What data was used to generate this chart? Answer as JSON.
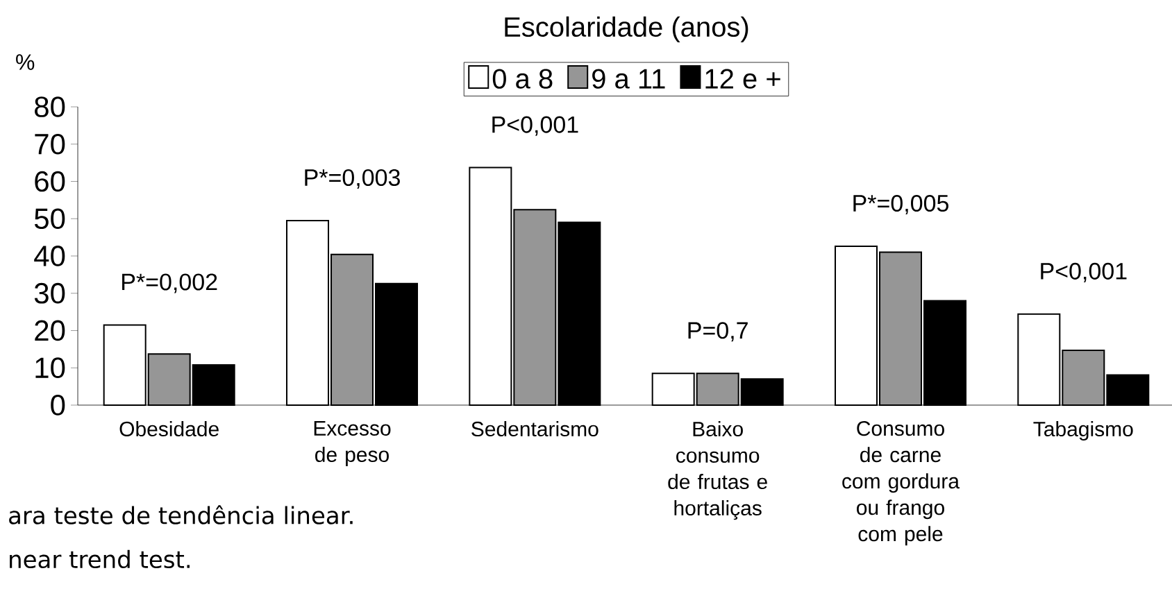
{
  "chart_data": {
    "type": "bar",
    "legend_title": "Escolaridade (anos)",
    "ylabel": "%",
    "categories": [
      "Obesidade",
      "Excesso de peso",
      "Sedentarismo",
      "Baixo consumo de frutas e hortaliças",
      "Consumo de carne com gordura ou frango com pele",
      "Tabagismo"
    ],
    "series": [
      {
        "name": "0 a 8",
        "color": "#ffffff",
        "values": [
          21.5,
          49.5,
          63.7,
          8.5,
          42.6,
          24.4
        ]
      },
      {
        "name": "9 a 11",
        "color": "#969696",
        "values": [
          13.7,
          40.4,
          52.4,
          8.5,
          41.0,
          14.7
        ]
      },
      {
        "name": "12 e +",
        "color": "#000000",
        "values": [
          10.8,
          32.6,
          49.0,
          7.0,
          28.0,
          8.1
        ]
      }
    ],
    "ylim": [
      0,
      80
    ],
    "yticks": [
      0,
      10,
      20,
      30,
      40,
      50,
      60,
      70,
      80
    ],
    "grid": false,
    "legend": "top",
    "annotations": [
      "P*=0,002",
      "P*=0,003",
      "P<0,001",
      "P=0,7",
      "P*=0,005",
      "P<0,001",
      "ara teste de tendência linear.",
      "near trend test."
    ]
  }
}
